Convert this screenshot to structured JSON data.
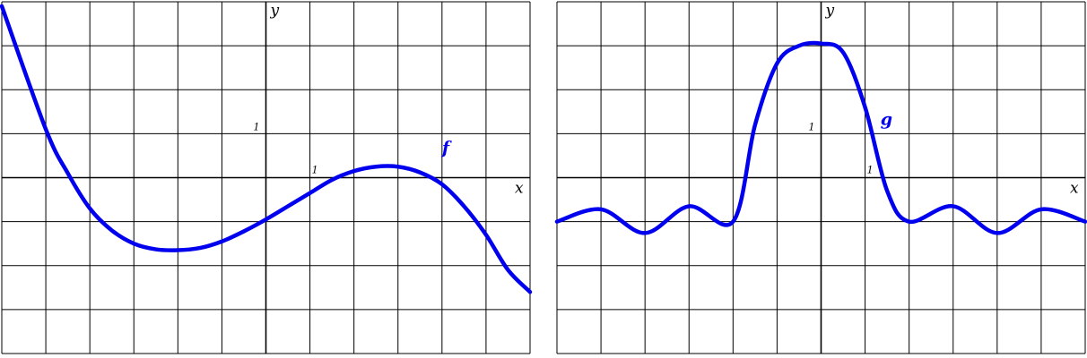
{
  "colors": {
    "curve": "#0000ee",
    "grid": "#000000"
  },
  "chart_data": [
    {
      "type": "line",
      "xlabel": "x",
      "ylabel": "y",
      "xlim": [
        -6,
        6
      ],
      "ylim": [
        -4,
        4
      ],
      "grid": true,
      "tick_labels": {
        "x": "1",
        "y": "1"
      },
      "series": [
        {
          "name": "f",
          "x": [
            -6,
            -5,
            -4.5,
            -4,
            -3.5,
            -3,
            -2.5,
            -2,
            -1.5,
            -1,
            -0.5,
            0,
            0.5,
            1,
            1.5,
            2,
            2.5,
            3,
            3.5,
            4,
            4.5,
            5,
            5.5,
            6
          ],
          "y": [
            3.9,
            1.1,
            0.1,
            -0.7,
            -1.2,
            -1.5,
            -1.63,
            -1.65,
            -1.6,
            -1.45,
            -1.22,
            -0.95,
            -0.65,
            -0.35,
            -0.05,
            0.15,
            0.25,
            0.25,
            0.12,
            -0.15,
            -0.65,
            -1.3,
            -2.1,
            -2.6
          ]
        },
        {
          "name": "g",
          "x": [
            -6,
            -5,
            -4,
            -3,
            -2,
            -1.5,
            -1,
            -0.5,
            0,
            0.5,
            1,
            1.5,
            2,
            3,
            4,
            5,
            6
          ],
          "y": [
            -1,
            -0.72,
            -1.26,
            -0.65,
            -1,
            1.2,
            2.6,
            3,
            3.05,
            2.85,
            1.6,
            -0.3,
            -1,
            -0.65,
            -1.26,
            -0.72,
            -1
          ]
        }
      ]
    }
  ]
}
